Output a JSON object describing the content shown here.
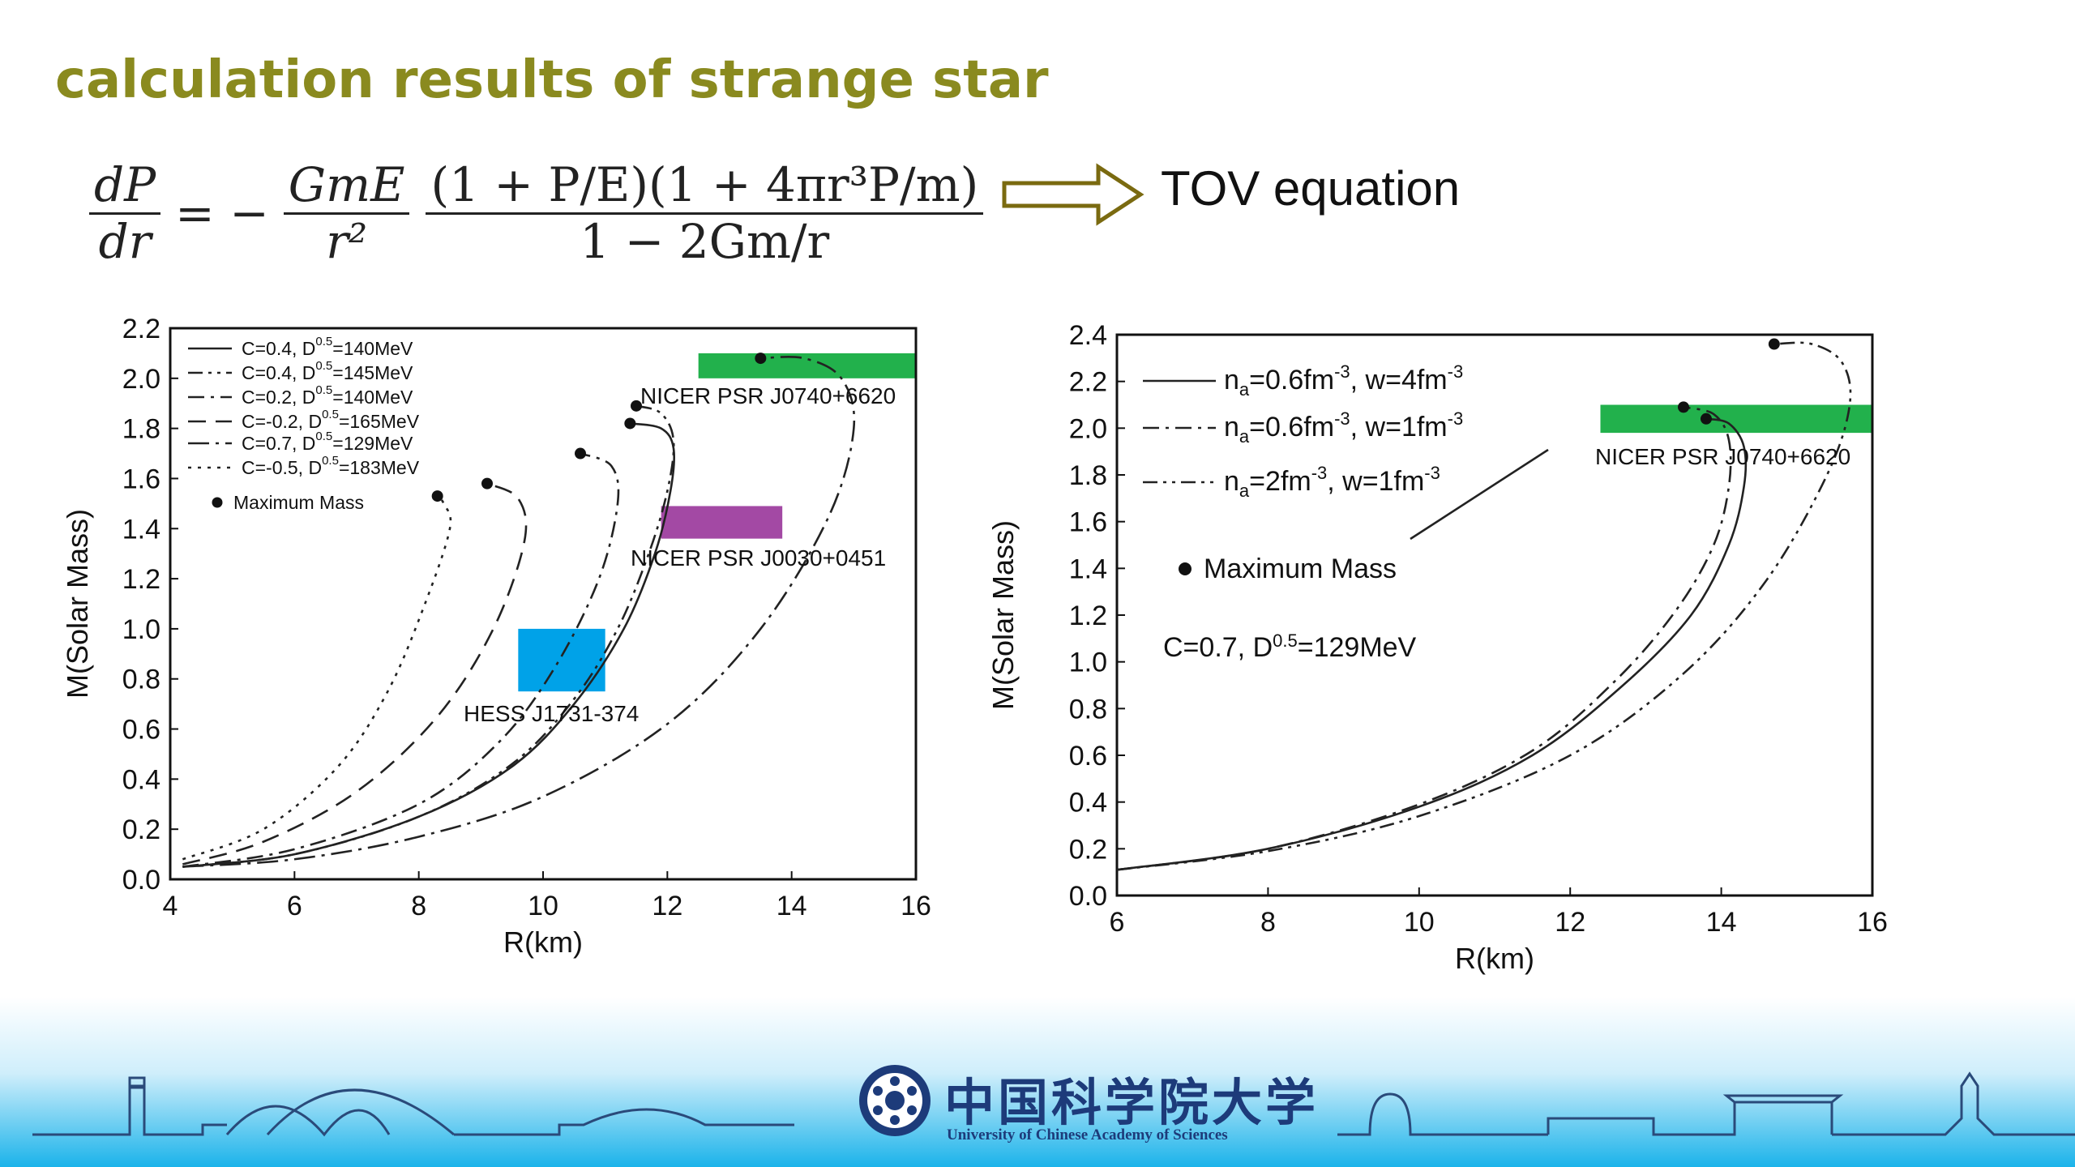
{
  "slide": {
    "title": "calculation results of strange star",
    "tov_label": "TOV equation",
    "equation": {
      "lhs_num": "dP",
      "lhs_den": "dr",
      "eq_minus": "= −",
      "f1_num": "GmE",
      "f1_den": "r²",
      "f2_num": "(1 + P/E)(1 + 4πr³P/m)",
      "f2_den": "1 − 2Gm/r"
    }
  },
  "footer": {
    "cn_name": "中国科学院大学",
    "en_name": "University of Chinese Academy of Sciences"
  },
  "colors": {
    "title": "#8a8a1f",
    "green_box": "#22b14c",
    "purple_box": "#a349a4",
    "blue_box": "#00a2e8"
  },
  "chart_data": [
    {
      "type": "line",
      "xlabel": "R(km)",
      "ylabel": "M(Solar Mass)",
      "xlim": [
        4,
        16
      ],
      "ylim": [
        0,
        2.2
      ],
      "xticks": [
        "4",
        "6",
        "8",
        "10",
        "12",
        "14",
        "16"
      ],
      "yticks": [
        "0.0",
        "0.2",
        "0.4",
        "0.6",
        "0.8",
        "1.0",
        "1.2",
        "1.4",
        "1.6",
        "1.8",
        "2.0",
        "2.2"
      ],
      "legend": [
        "C=0.4, D0.5=140MeV",
        "C=0.4, D0.5=145MeV",
        "C=0.2, D0.5=140MeV",
        "C=-0.2, D0.5=165MeV",
        "C=0.7, D0.5=129MeV",
        "C=-0.5, D0.5=183MeV",
        "Maximum Mass"
      ],
      "boxes": [
        {
          "label": "NICER PSR J0740+6620",
          "x": [
            12.5,
            16.0
          ],
          "y": [
            2.0,
            2.1
          ],
          "color": "#22b14c"
        },
        {
          "label": "NICER PSR J0030+0451",
          "x": [
            11.9,
            13.85
          ],
          "y": [
            1.36,
            1.49
          ],
          "color": "#a349a4"
        },
        {
          "label": "HESS J1731-374",
          "x": [
            9.6,
            11.0
          ],
          "y": [
            0.75,
            1.0
          ],
          "color": "#00a2e8"
        }
      ],
      "max_mass_points": [
        [
          13.5,
          2.08
        ],
        [
          11.5,
          1.89
        ],
        [
          11.4,
          1.82
        ],
        [
          10.6,
          1.7
        ],
        [
          9.1,
          1.58
        ],
        [
          8.3,
          1.53
        ]
      ],
      "series": [
        {
          "name": "C=0.4, D0.5=140MeV",
          "style": "solid",
          "points": [
            [
              4.2,
              0.05
            ],
            [
              6,
              0.1
            ],
            [
              8,
              0.25
            ],
            [
              9.5,
              0.45
            ],
            [
              10.5,
              0.7
            ],
            [
              11.3,
              1.0
            ],
            [
              11.8,
              1.3
            ],
            [
              12.05,
              1.55
            ],
            [
              12.1,
              1.72
            ],
            [
              11.9,
              1.8
            ],
            [
              11.4,
              1.82
            ]
          ]
        },
        {
          "name": "C=0.4, D0.5=145MeV",
          "style": "dashdotdot",
          "points": [
            [
              4.2,
              0.05
            ],
            [
              6,
              0.1
            ],
            [
              8,
              0.25
            ],
            [
              9.5,
              0.46
            ],
            [
              10.5,
              0.72
            ],
            [
              11.2,
              1.0
            ],
            [
              11.7,
              1.3
            ],
            [
              12.0,
              1.55
            ],
            [
              12.1,
              1.75
            ],
            [
              11.9,
              1.86
            ],
            [
              11.5,
              1.89
            ]
          ]
        },
        {
          "name": "C=0.2, D0.5=140MeV",
          "style": "dashdot",
          "points": [
            [
              4.2,
              0.05
            ],
            [
              6,
              0.12
            ],
            [
              8,
              0.3
            ],
            [
              9.3,
              0.55
            ],
            [
              10.2,
              0.85
            ],
            [
              10.9,
              1.2
            ],
            [
              11.2,
              1.5
            ],
            [
              11.1,
              1.65
            ],
            [
              10.6,
              1.7
            ]
          ]
        },
        {
          "name": "C=-0.2, D0.5=165MeV",
          "style": "dash",
          "points": [
            [
              4.2,
              0.06
            ],
            [
              5.5,
              0.15
            ],
            [
              7,
              0.35
            ],
            [
              8.3,
              0.65
            ],
            [
              9.2,
              1.0
            ],
            [
              9.7,
              1.35
            ],
            [
              9.6,
              1.52
            ],
            [
              9.1,
              1.58
            ]
          ]
        },
        {
          "name": "C=0.7, D0.5=129MeV",
          "style": "dashdot-long",
          "points": [
            [
              4.2,
              0.05
            ],
            [
              6,
              0.08
            ],
            [
              8,
              0.17
            ],
            [
              10,
              0.33
            ],
            [
              12,
              0.62
            ],
            [
              13.5,
              1.0
            ],
            [
              14.6,
              1.45
            ],
            [
              15.0,
              1.8
            ],
            [
              14.8,
              2.0
            ],
            [
              14.2,
              2.08
            ],
            [
              13.5,
              2.08
            ]
          ]
        },
        {
          "name": "C=-0.5, D0.5=183MeV",
          "style": "dot",
          "points": [
            [
              4.2,
              0.08
            ],
            [
              5.5,
              0.2
            ],
            [
              6.7,
              0.45
            ],
            [
              7.5,
              0.75
            ],
            [
              8.1,
              1.1
            ],
            [
              8.5,
              1.4
            ],
            [
              8.4,
              1.5
            ],
            [
              8.3,
              1.53
            ]
          ]
        }
      ]
    },
    {
      "type": "line",
      "xlabel": "R(km)",
      "ylabel": "M(Solar Mass)",
      "xlim": [
        6,
        16
      ],
      "ylim": [
        0,
        2.4
      ],
      "xticks": [
        "6",
        "8",
        "10",
        "12",
        "14",
        "16"
      ],
      "yticks": [
        "0.0",
        "0.2",
        "0.4",
        "0.6",
        "0.8",
        "1.0",
        "1.2",
        "1.4",
        "1.6",
        "1.8",
        "2.0",
        "2.2",
        "2.4"
      ],
      "legend": [
        "na=0.6fm-3, w=4fm-3",
        "na=0.6fm-3, w=1fm-3",
        "na=2fm-3, w=1fm-3",
        "Maximum Mass"
      ],
      "annotation": "C=0.7, D0.5=129MeV",
      "boxes": [
        {
          "label": "NICER PSR J0740+6620",
          "x": [
            12.4,
            16.0
          ],
          "y": [
            1.98,
            2.1
          ],
          "color": "#22b14c"
        }
      ],
      "max_mass_points": [
        [
          14.7,
          2.36
        ],
        [
          13.5,
          2.09
        ],
        [
          13.8,
          2.04
        ]
      ],
      "series": [
        {
          "name": "na=0.6fm-3, w=4fm-3",
          "style": "solid",
          "points": [
            [
              6,
              0.11
            ],
            [
              8,
              0.2
            ],
            [
              10,
              0.38
            ],
            [
              11.5,
              0.6
            ],
            [
              12.7,
              0.9
            ],
            [
              13.6,
              1.2
            ],
            [
              14.1,
              1.5
            ],
            [
              14.3,
              1.75
            ],
            [
              14.3,
              1.92
            ],
            [
              14.1,
              2.02
            ],
            [
              13.8,
              2.04
            ]
          ]
        },
        {
          "name": "na=0.6fm-3, w=1fm-3",
          "style": "dashdot",
          "points": [
            [
              6,
              0.11
            ],
            [
              8,
              0.2
            ],
            [
              10,
              0.39
            ],
            [
              11.5,
              0.62
            ],
            [
              12.6,
              0.92
            ],
            [
              13.4,
              1.22
            ],
            [
              13.9,
              1.5
            ],
            [
              14.1,
              1.75
            ],
            [
              14.1,
              1.95
            ],
            [
              13.9,
              2.06
            ],
            [
              13.5,
              2.09
            ]
          ]
        },
        {
          "name": "na=2fm-3, w=1fm-3",
          "style": "dashdotdot",
          "points": [
            [
              6,
              0.11
            ],
            [
              8,
              0.19
            ],
            [
              10,
              0.34
            ],
            [
              12,
              0.6
            ],
            [
              13.5,
              0.95
            ],
            [
              14.6,
              1.35
            ],
            [
              15.4,
              1.8
            ],
            [
              15.7,
              2.1
            ],
            [
              15.6,
              2.28
            ],
            [
              15.2,
              2.36
            ],
            [
              14.7,
              2.36
            ]
          ]
        }
      ]
    }
  ]
}
